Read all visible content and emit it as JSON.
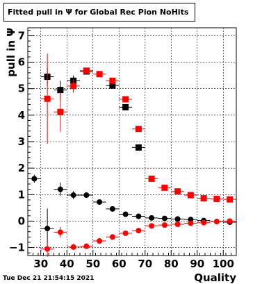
{
  "title": "Fitted pull in Ψ for Global Rec Pion NoHits",
  "timestamp": "Tue Dec 21 21:54:15 2021",
  "chart_data": {
    "type": "scatter",
    "xlabel": "Quality",
    "ylabel": "pull in Ψ",
    "xlim": [
      25,
      105
    ],
    "ylim": [
      -1.3,
      7.3
    ],
    "x_ticks": [
      30,
      40,
      50,
      60,
      70,
      80,
      90,
      100
    ],
    "y_ticks": [
      -1,
      0,
      1,
      2,
      3,
      4,
      5,
      6,
      7
    ],
    "grid": true,
    "series": [
      {
        "marker": "square",
        "color": "#000000",
        "x": [
          32.5,
          37.5,
          42.5,
          47.5,
          57.5,
          62.5,
          67.5
        ],
        "y": [
          5.45,
          4.95,
          5.3,
          5.65,
          5.12,
          4.3,
          2.78
        ],
        "yerr": [
          0.35,
          0.35,
          0.2,
          0.12,
          0.12,
          0.12,
          0.08
        ]
      },
      {
        "marker": "square",
        "color": "#ff0000",
        "x": [
          32.5,
          37.5,
          42.5,
          47.5,
          52.5,
          57.5,
          62.5,
          67.5,
          72.5,
          77.5,
          82.5,
          87.5,
          92.5,
          97.5,
          102.5
        ],
        "y": [
          4.62,
          4.12,
          5.1,
          5.68,
          5.55,
          5.3,
          4.6,
          3.48,
          1.6,
          1.26,
          1.12,
          0.98,
          0.86,
          0.84,
          0.82
        ],
        "yerr": [
          1.7,
          0.75,
          0.25,
          0.1,
          0.08,
          0.08,
          0.06,
          0.05,
          0.04,
          0.04,
          0.03,
          0.03,
          0.03,
          0.03,
          0.03
        ]
      },
      {
        "marker": "circle",
        "color": "#000000",
        "x": [
          27.5,
          32.5,
          37.5,
          42.5,
          47.5,
          52.5,
          57.5,
          62.5,
          67.5,
          72.5,
          77.5,
          82.5,
          87.5,
          92.5,
          97.5,
          102.5
        ],
        "y": [
          1.6,
          -0.28,
          1.2,
          0.98,
          0.98,
          0.72,
          0.46,
          0.26,
          0.18,
          0.12,
          0.1,
          0.08,
          0.06,
          0.02,
          -0.02,
          -0.04
        ],
        "yerr": [
          0.15,
          0.75,
          0.25,
          0.15,
          0.08,
          0.06,
          0.05,
          0.04,
          0.03,
          0.03,
          0.03,
          0.03,
          0.02,
          0.02,
          0.02,
          0.02
        ]
      },
      {
        "marker": "circle",
        "color": "#ff0000",
        "x": [
          32.5,
          37.5,
          42.5,
          47.5,
          52.5,
          57.5,
          62.5,
          67.5,
          72.5,
          77.5,
          82.5,
          87.5,
          92.5,
          97.5,
          102.5
        ],
        "y": [
          -1.05,
          -0.42,
          -0.98,
          -0.95,
          -0.75,
          -0.6,
          -0.46,
          -0.36,
          -0.18,
          -0.15,
          -0.12,
          -0.08,
          -0.06,
          -0.02,
          0.0
        ],
        "yerr": [
          0.3,
          0.2,
          0.12,
          0.08,
          0.06,
          0.05,
          0.05,
          0.04,
          0.04,
          0.03,
          0.03,
          0.03,
          0.03,
          0.02,
          0.02
        ]
      }
    ]
  }
}
